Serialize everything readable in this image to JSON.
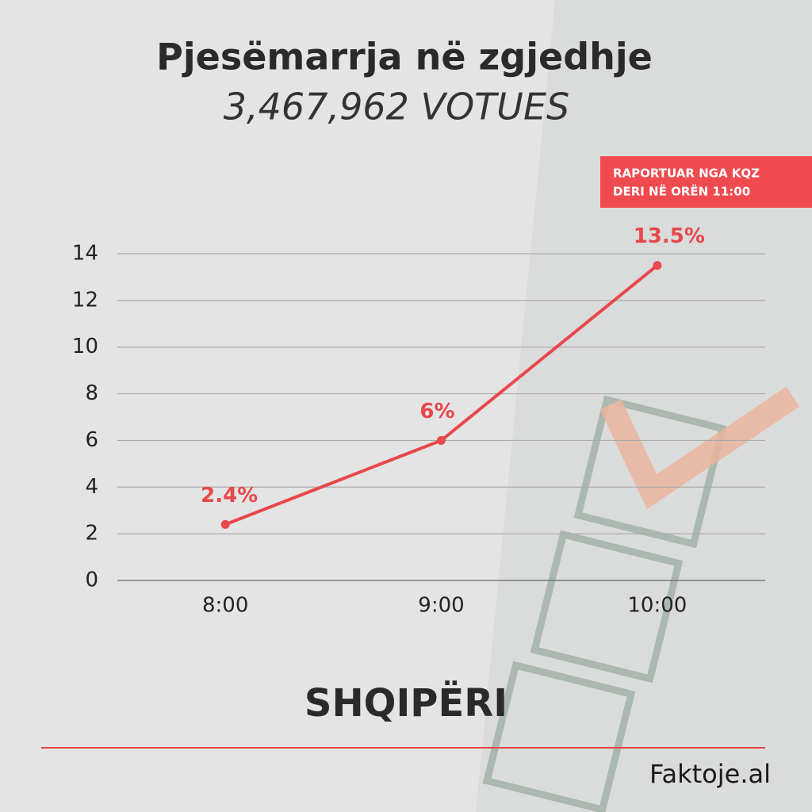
{
  "chart_data": {
    "type": "line",
    "title": "Pjesëmarrja në zgjedhje",
    "subtitle": "3,467,962 VOTUES",
    "annotations": [
      "RAPORTUAR NGA KQZ",
      "DERI NË ORËN 11:00"
    ],
    "region": "SHQIPËRI",
    "source": "Faktoje.al",
    "categories": [
      "8:00",
      "9:00",
      "10:00"
    ],
    "values": [
      2.4,
      6,
      13.5
    ],
    "value_labels": [
      "2.4%",
      "6%",
      "13.5%"
    ],
    "color": "#e8474b",
    "ylim": [
      0,
      14
    ],
    "yticks": [
      0,
      2,
      4,
      6,
      8,
      10,
      12,
      14
    ],
    "grid": true
  }
}
